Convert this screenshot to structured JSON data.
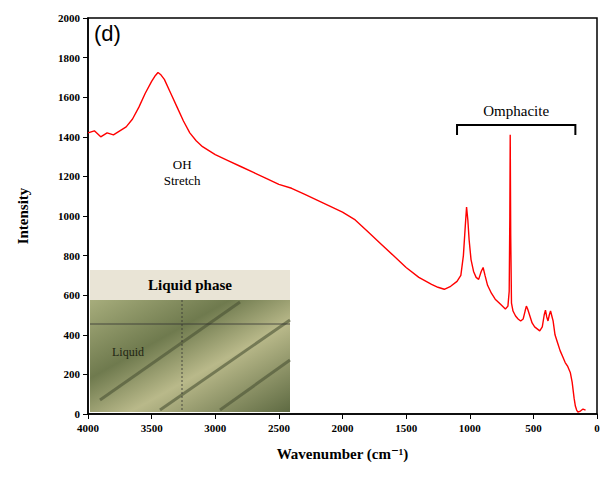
{
  "chart_data": {
    "type": "line",
    "panel": "(d)",
    "x_label": "Wavenumber (cm⁻¹)",
    "y_label": "Intensity",
    "x": [
      4000,
      3950,
      3900,
      3850,
      3800,
      3750,
      3700,
      3650,
      3600,
      3550,
      3500,
      3470,
      3450,
      3430,
      3400,
      3350,
      3300,
      3250,
      3200,
      3150,
      3100,
      3050,
      3000,
      2900,
      2800,
      2700,
      2600,
      2500,
      2400,
      2300,
      2200,
      2100,
      2000,
      1900,
      1800,
      1700,
      1600,
      1500,
      1400,
      1300,
      1250,
      1200,
      1150,
      1100,
      1070,
      1050,
      1035,
      1025,
      1015,
      1005,
      990,
      970,
      950,
      930,
      910,
      895,
      880,
      860,
      830,
      800,
      760,
      720,
      700,
      690,
      685,
      682,
      678,
      672,
      660,
      640,
      620,
      600,
      580,
      565,
      555,
      545,
      530,
      510,
      490,
      470,
      450,
      430,
      415,
      405,
      395,
      385,
      375,
      365,
      355,
      345,
      330,
      310,
      290,
      270,
      250,
      230,
      210,
      195,
      180,
      170,
      160,
      150,
      130,
      110,
      90
    ],
    "values": [
      1420,
      1430,
      1400,
      1420,
      1410,
      1430,
      1450,
      1490,
      1550,
      1620,
      1680,
      1710,
      1725,
      1715,
      1690,
      1620,
      1550,
      1480,
      1420,
      1380,
      1350,
      1330,
      1310,
      1280,
      1250,
      1220,
      1190,
      1160,
      1140,
      1110,
      1080,
      1050,
      1020,
      980,
      920,
      860,
      800,
      740,
      690,
      655,
      640,
      630,
      645,
      670,
      700,
      800,
      950,
      1045,
      980,
      880,
      780,
      720,
      690,
      680,
      720,
      740,
      700,
      650,
      610,
      580,
      555,
      530,
      545,
      620,
      1000,
      1410,
      900,
      560,
      520,
      495,
      480,
      470,
      480,
      520,
      545,
      530,
      500,
      460,
      440,
      430,
      420,
      440,
      500,
      525,
      490,
      470,
      500,
      520,
      495,
      470,
      400,
      360,
      320,
      290,
      260,
      240,
      210,
      160,
      80,
      40,
      20,
      10,
      15,
      25,
      20
    ],
    "color": "#ff0000",
    "line_style": "solid",
    "xlim": [
      4000,
      0
    ],
    "xticks": [
      4000,
      3500,
      3000,
      2500,
      2000,
      1500,
      1000,
      500,
      0
    ],
    "ylim": [
      0,
      2000
    ],
    "yticks": [
      0,
      200,
      400,
      600,
      800,
      1000,
      1200,
      1400,
      1600,
      1800,
      2000
    ],
    "grid": false,
    "annotations": [
      {
        "text": "OH Stretch",
        "x": 3260,
        "y": 1300
      },
      {
        "text": "Omphacite",
        "x": [
          1100,
          170
        ],
        "y": 1460
      }
    ],
    "inset": {
      "title": "Liquid phase",
      "label": "Liquid"
    }
  }
}
